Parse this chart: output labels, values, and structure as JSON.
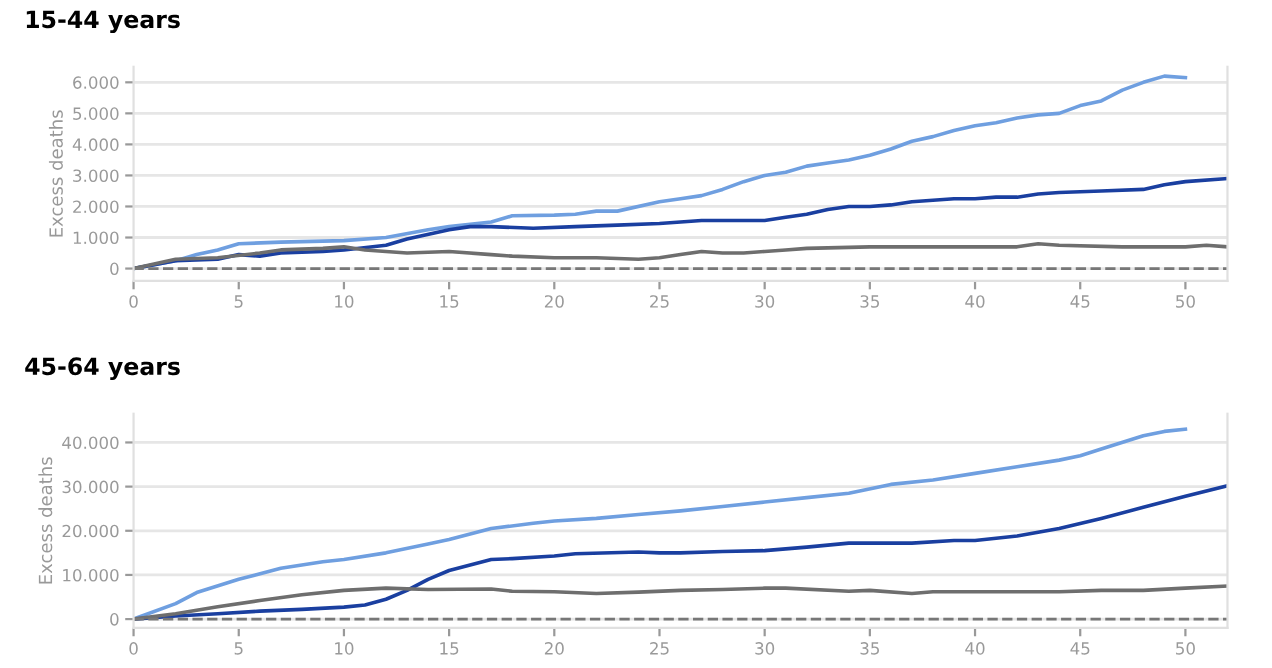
{
  "chart_data": [
    {
      "type": "line",
      "title": "15-44 years",
      "ylabel": "Excess deaths",
      "xlim": [
        0,
        52
      ],
      "ylim": [
        -400,
        6500
      ],
      "xticks": [
        0,
        5,
        10,
        15,
        20,
        25,
        30,
        35,
        40,
        45,
        50
      ],
      "yticks": [
        0,
        {
          "value": 1000,
          "label": "1.000"
        },
        {
          "value": 2000,
          "label": "2.000"
        },
        {
          "value": 3000,
          "label": "3.000"
        },
        {
          "value": 4000,
          "label": "4.000"
        },
        {
          "value": 5000,
          "label": "5.000"
        },
        {
          "value": 6000,
          "label": "6.000"
        }
      ],
      "grid": "y",
      "legend": false,
      "marker": "none",
      "line_style": "solid",
      "ref_lines": [
        {
          "axis": "y",
          "value": 0,
          "color": "#777777",
          "line_style": "dashed"
        }
      ],
      "series": [
        {
          "color": "#6f9fe0",
          "x": [
            0,
            2,
            3,
            4,
            5,
            7,
            10,
            12,
            14,
            15,
            17,
            18,
            20,
            21,
            22,
            23,
            25,
            26,
            27,
            28,
            29,
            30,
            31,
            32,
            33,
            34,
            35,
            36,
            37,
            38,
            39,
            40,
            41,
            42,
            43,
            44,
            45,
            46,
            47,
            48,
            49,
            50
          ],
          "values": [
            0,
            250,
            450,
            600,
            800,
            850,
            900,
            1000,
            1250,
            1350,
            1500,
            1700,
            1720,
            1750,
            1850,
            1850,
            2150,
            2250,
            2350,
            2550,
            2800,
            3000,
            3100,
            3300,
            3400,
            3500,
            3650,
            3850,
            4100,
            4250,
            4450,
            4600,
            4700,
            4850,
            4950,
            5000,
            5250,
            5400,
            5750,
            6000,
            6200,
            6150
          ]
        },
        {
          "color": "#1a3fa0",
          "x": [
            0,
            2,
            4,
            5,
            6,
            7,
            9,
            10,
            12,
            13,
            15,
            16,
            17,
            19,
            21,
            23,
            25,
            26,
            27,
            30,
            31,
            32,
            33,
            34,
            35,
            36,
            37,
            38,
            39,
            40,
            41,
            42,
            43,
            44,
            46,
            48,
            49,
            50,
            52
          ],
          "values": [
            0,
            250,
            300,
            450,
            400,
            500,
            550,
            600,
            750,
            950,
            1250,
            1350,
            1350,
            1300,
            1350,
            1400,
            1450,
            1500,
            1550,
            1550,
            1650,
            1750,
            1900,
            2000,
            2000,
            2050,
            2150,
            2200,
            2250,
            2250,
            2300,
            2300,
            2400,
            2450,
            2500,
            2550,
            2700,
            2800,
            2900
          ]
        },
        {
          "color": "#6e6e6e",
          "x": [
            0,
            2,
            4,
            6,
            7,
            9,
            10,
            11,
            13,
            15,
            17,
            18,
            20,
            22,
            24,
            25,
            26,
            27,
            28,
            29,
            30,
            31,
            32,
            35,
            40,
            42,
            43,
            44,
            47,
            50,
            51,
            52
          ],
          "values": [
            0,
            300,
            350,
            500,
            600,
            650,
            700,
            600,
            500,
            550,
            450,
            400,
            350,
            350,
            300,
            350,
            450,
            550,
            500,
            500,
            550,
            600,
            650,
            700,
            700,
            700,
            800,
            750,
            700,
            700,
            750,
            700
          ]
        }
      ]
    },
    {
      "type": "line",
      "title": "45-64 years",
      "ylabel": "Excess deaths",
      "xlim": [
        0,
        52
      ],
      "ylim": [
        -2000,
        46500
      ],
      "xticks": [
        0,
        5,
        10,
        15,
        20,
        25,
        30,
        35,
        40,
        45,
        50
      ],
      "yticks": [
        0,
        {
          "value": 10000,
          "label": "10.000"
        },
        {
          "value": 20000,
          "label": "20.000"
        },
        {
          "value": 30000,
          "label": "30.000"
        },
        {
          "value": 40000,
          "label": "40.000"
        }
      ],
      "grid": "y",
      "legend": false,
      "marker": "none",
      "line_style": "solid",
      "ref_lines": [
        {
          "axis": "y",
          "value": 0,
          "color": "#777777",
          "line_style": "dashed"
        }
      ],
      "series": [
        {
          "color": "#6f9fe0",
          "x": [
            0,
            2,
            3,
            5,
            7,
            9,
            10,
            12,
            14,
            15,
            17,
            19,
            20,
            22,
            24,
            26,
            28,
            30,
            32,
            34,
            36,
            38,
            40,
            42,
            44,
            45,
            46,
            48,
            49,
            50
          ],
          "values": [
            0,
            3500,
            6000,
            9000,
            11500,
            13000,
            13500,
            15000,
            17000,
            18000,
            20500,
            21700,
            22200,
            22800,
            23700,
            24500,
            25500,
            26500,
            27500,
            28500,
            30500,
            31500,
            33000,
            34500,
            36000,
            37000,
            38500,
            41500,
            42500,
            43000
          ]
        },
        {
          "color": "#1a3fa0",
          "x": [
            0,
            2,
            4,
            6,
            8,
            10,
            11,
            12,
            13,
            14,
            15,
            17,
            18,
            20,
            21,
            24,
            25,
            26,
            28,
            30,
            32,
            34,
            37,
            39,
            40,
            42,
            44,
            46,
            48,
            50,
            52
          ],
          "values": [
            0,
            700,
            1200,
            1800,
            2200,
            2700,
            3200,
            4500,
            6500,
            9000,
            11000,
            13500,
            13700,
            14300,
            14800,
            15200,
            15000,
            15000,
            15300,
            15500,
            16300,
            17200,
            17200,
            17800,
            17800,
            18800,
            20500,
            22800,
            25300,
            27800,
            30200
          ]
        },
        {
          "color": "#6e6e6e",
          "x": [
            0,
            2,
            4,
            6,
            8,
            10,
            12,
            14,
            17,
            18,
            20,
            22,
            24,
            26,
            28,
            30,
            31,
            34,
            35,
            37,
            38,
            40,
            44,
            46,
            48,
            50,
            52
          ],
          "values": [
            0,
            1200,
            2800,
            4200,
            5500,
            6500,
            7000,
            6700,
            6800,
            6300,
            6200,
            5800,
            6100,
            6500,
            6700,
            7000,
            7000,
            6300,
            6500,
            5800,
            6200,
            6200,
            6200,
            6500,
            6500,
            7000,
            7500
          ]
        }
      ]
    }
  ]
}
